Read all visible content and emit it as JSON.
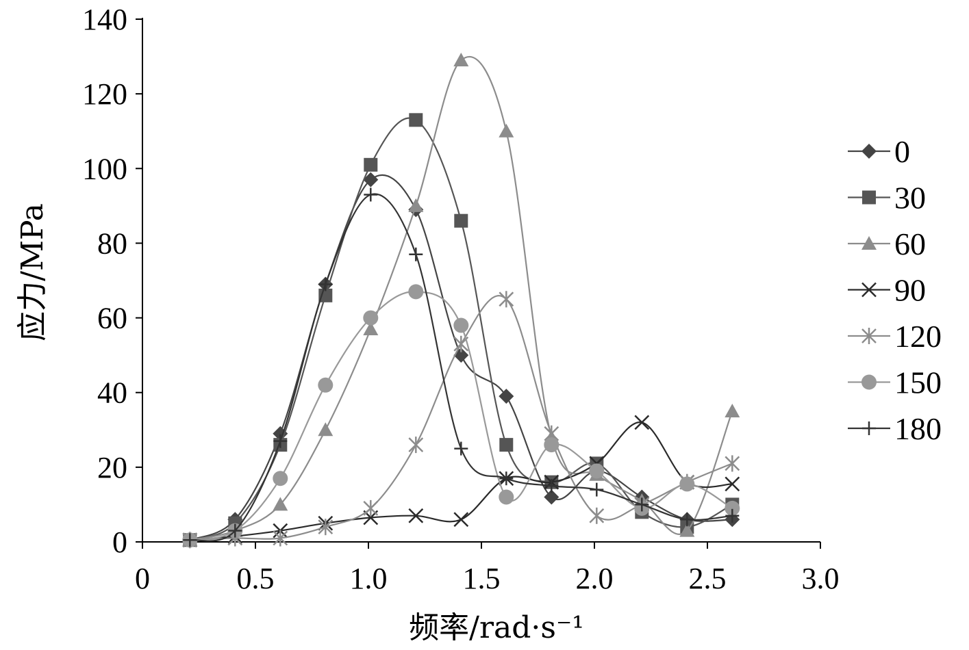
{
  "chart_data": {
    "type": "line",
    "title": "",
    "xlabel": "频率/rad·s⁻¹",
    "ylabel": "应力/MPa",
    "xlim": [
      0,
      3.0
    ],
    "ylim": [
      0,
      140
    ],
    "xticks": [
      0,
      0.5,
      1.0,
      1.5,
      2.0,
      2.5,
      3.0
    ],
    "xtick_labels": [
      "0",
      "0.5",
      "1.0",
      "1.5",
      "2.0",
      "2.5",
      "3.0"
    ],
    "yticks": [
      0,
      20,
      40,
      60,
      80,
      100,
      120,
      140
    ],
    "ytick_labels": [
      "0",
      "20",
      "40",
      "60",
      "80",
      "100",
      "120",
      "140"
    ],
    "grid": false,
    "legend_position": "right",
    "smooth": true,
    "x": [
      0.21,
      0.41,
      0.61,
      0.81,
      1.01,
      1.21,
      1.41,
      1.61,
      1.81,
      2.01,
      2.21,
      2.41,
      2.61
    ],
    "series": [
      {
        "name": "0",
        "marker": "diamond",
        "color": "#444444",
        "values": [
          0.5,
          6,
          29,
          69,
          97,
          89,
          50,
          39,
          12,
          19,
          12,
          6,
          6
        ]
      },
      {
        "name": "30",
        "marker": "square",
        "color": "#555555",
        "values": [
          0.5,
          5,
          26,
          66,
          101,
          113,
          86,
          26,
          16,
          21,
          8,
          4,
          10
        ]
      },
      {
        "name": "60",
        "marker": "triangle",
        "color": "#8c8c8c",
        "values": [
          0.5,
          3,
          10,
          30,
          57,
          90,
          129,
          110,
          28,
          18,
          11,
          3,
          35
        ]
      },
      {
        "name": "90",
        "marker": "x",
        "color": "#2a2a2a",
        "values": [
          0.5,
          1.5,
          3,
          5,
          6.5,
          7,
          6,
          17,
          16,
          21,
          32,
          16,
          15.5
        ]
      },
      {
        "name": "120",
        "marker": "star",
        "color": "#8c8c8c",
        "values": [
          0.5,
          1,
          1,
          4,
          9,
          26,
          53,
          65,
          29,
          7,
          10,
          16,
          21
        ]
      },
      {
        "name": "150",
        "marker": "circle",
        "color": "#999999",
        "values": [
          0.5,
          3,
          17,
          42,
          60,
          67,
          58,
          12,
          26,
          19,
          9,
          15.5,
          9
        ]
      },
      {
        "name": "180",
        "marker": "plus",
        "color": "#333333",
        "values": [
          0.5,
          3,
          27,
          69,
          93,
          77,
          25,
          17,
          15,
          14,
          10,
          6,
          7
        ]
      }
    ]
  }
}
